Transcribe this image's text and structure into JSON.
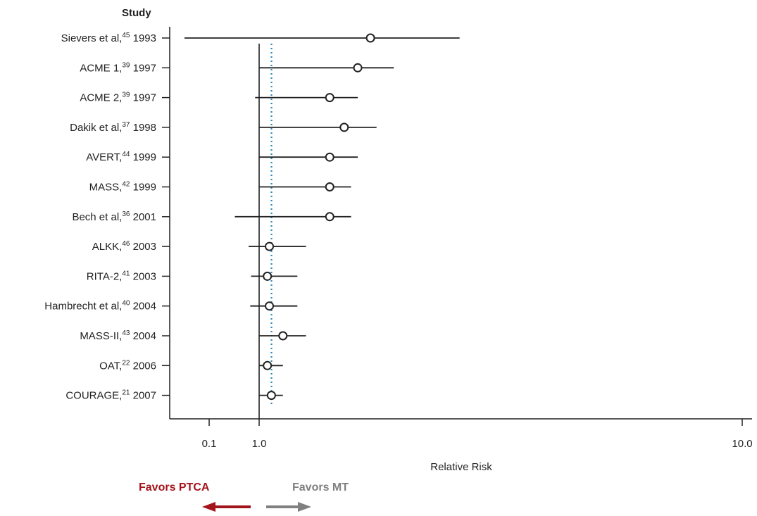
{
  "chart_data": {
    "type": "forest",
    "column_header": "Study",
    "xlabel": "Relative Risk",
    "x_ticks": [
      "0.1",
      "1.0",
      "10.0"
    ],
    "reference_line": 1.0,
    "pooled_estimate_line": 1.05,
    "studies": [
      {
        "name": "Sievers et al,",
        "ref": "45",
        "year": "1993",
        "rr": 1.7,
        "ci_low": 0.078,
        "ci_high": 2.6
      },
      {
        "name": "ACME 1,",
        "ref": "39",
        "year": "1997",
        "rr": 1.6,
        "ci_low": 1.0,
        "ci_high": 1.9
      },
      {
        "name": "ACME 2,",
        "ref": "39",
        "year": "1997",
        "rr": 1.4,
        "ci_low": 0.95,
        "ci_high": 1.6
      },
      {
        "name": "Dakik et al,",
        "ref": "37",
        "year": "1998",
        "rr": 1.5,
        "ci_low": 1.0,
        "ci_high": 1.75
      },
      {
        "name": "AVERT,",
        "ref": "44",
        "year": "1999",
        "rr": 1.4,
        "ci_low": 1.0,
        "ci_high": 1.6
      },
      {
        "name": "MASS,",
        "ref": "42",
        "year": "1999",
        "rr": 1.4,
        "ci_low": 1.0,
        "ci_high": 1.55
      },
      {
        "name": "Bech et al,",
        "ref": "36",
        "year": "2001",
        "rr": 1.4,
        "ci_low": 0.7,
        "ci_high": 1.55
      },
      {
        "name": "ALKK,",
        "ref": "46",
        "year": "2003",
        "rr": 1.05,
        "ci_low": 0.87,
        "ci_high": 1.25
      },
      {
        "name": "RITA-2,",
        "ref": "41",
        "year": "2003",
        "rr": 1.04,
        "ci_low": 0.9,
        "ci_high": 1.2
      },
      {
        "name": "Hambrecht et al,",
        "ref": "40",
        "year": "2004",
        "rr": 1.05,
        "ci_low": 0.89,
        "ci_high": 1.2
      },
      {
        "name": "MASS-II,",
        "ref": "43",
        "year": "2004",
        "rr": 1.12,
        "ci_low": 1.0,
        "ci_high": 1.25
      },
      {
        "name": "OAT,",
        "ref": "22",
        "year": "2006",
        "rr": 1.04,
        "ci_low": 1.0,
        "ci_high": 1.12
      },
      {
        "name": "COURAGE,",
        "ref": "21",
        "year": "2007",
        "rr": 1.06,
        "ci_low": 1.0,
        "ci_high": 1.12
      }
    ],
    "favors_left": "Favors PTCA",
    "favors_right": "Favors MT",
    "colors": {
      "line": "#222222",
      "pooled_dotted": "#2a8ab8",
      "favors_left": "#a3151c",
      "favors_right": "#808080"
    }
  }
}
